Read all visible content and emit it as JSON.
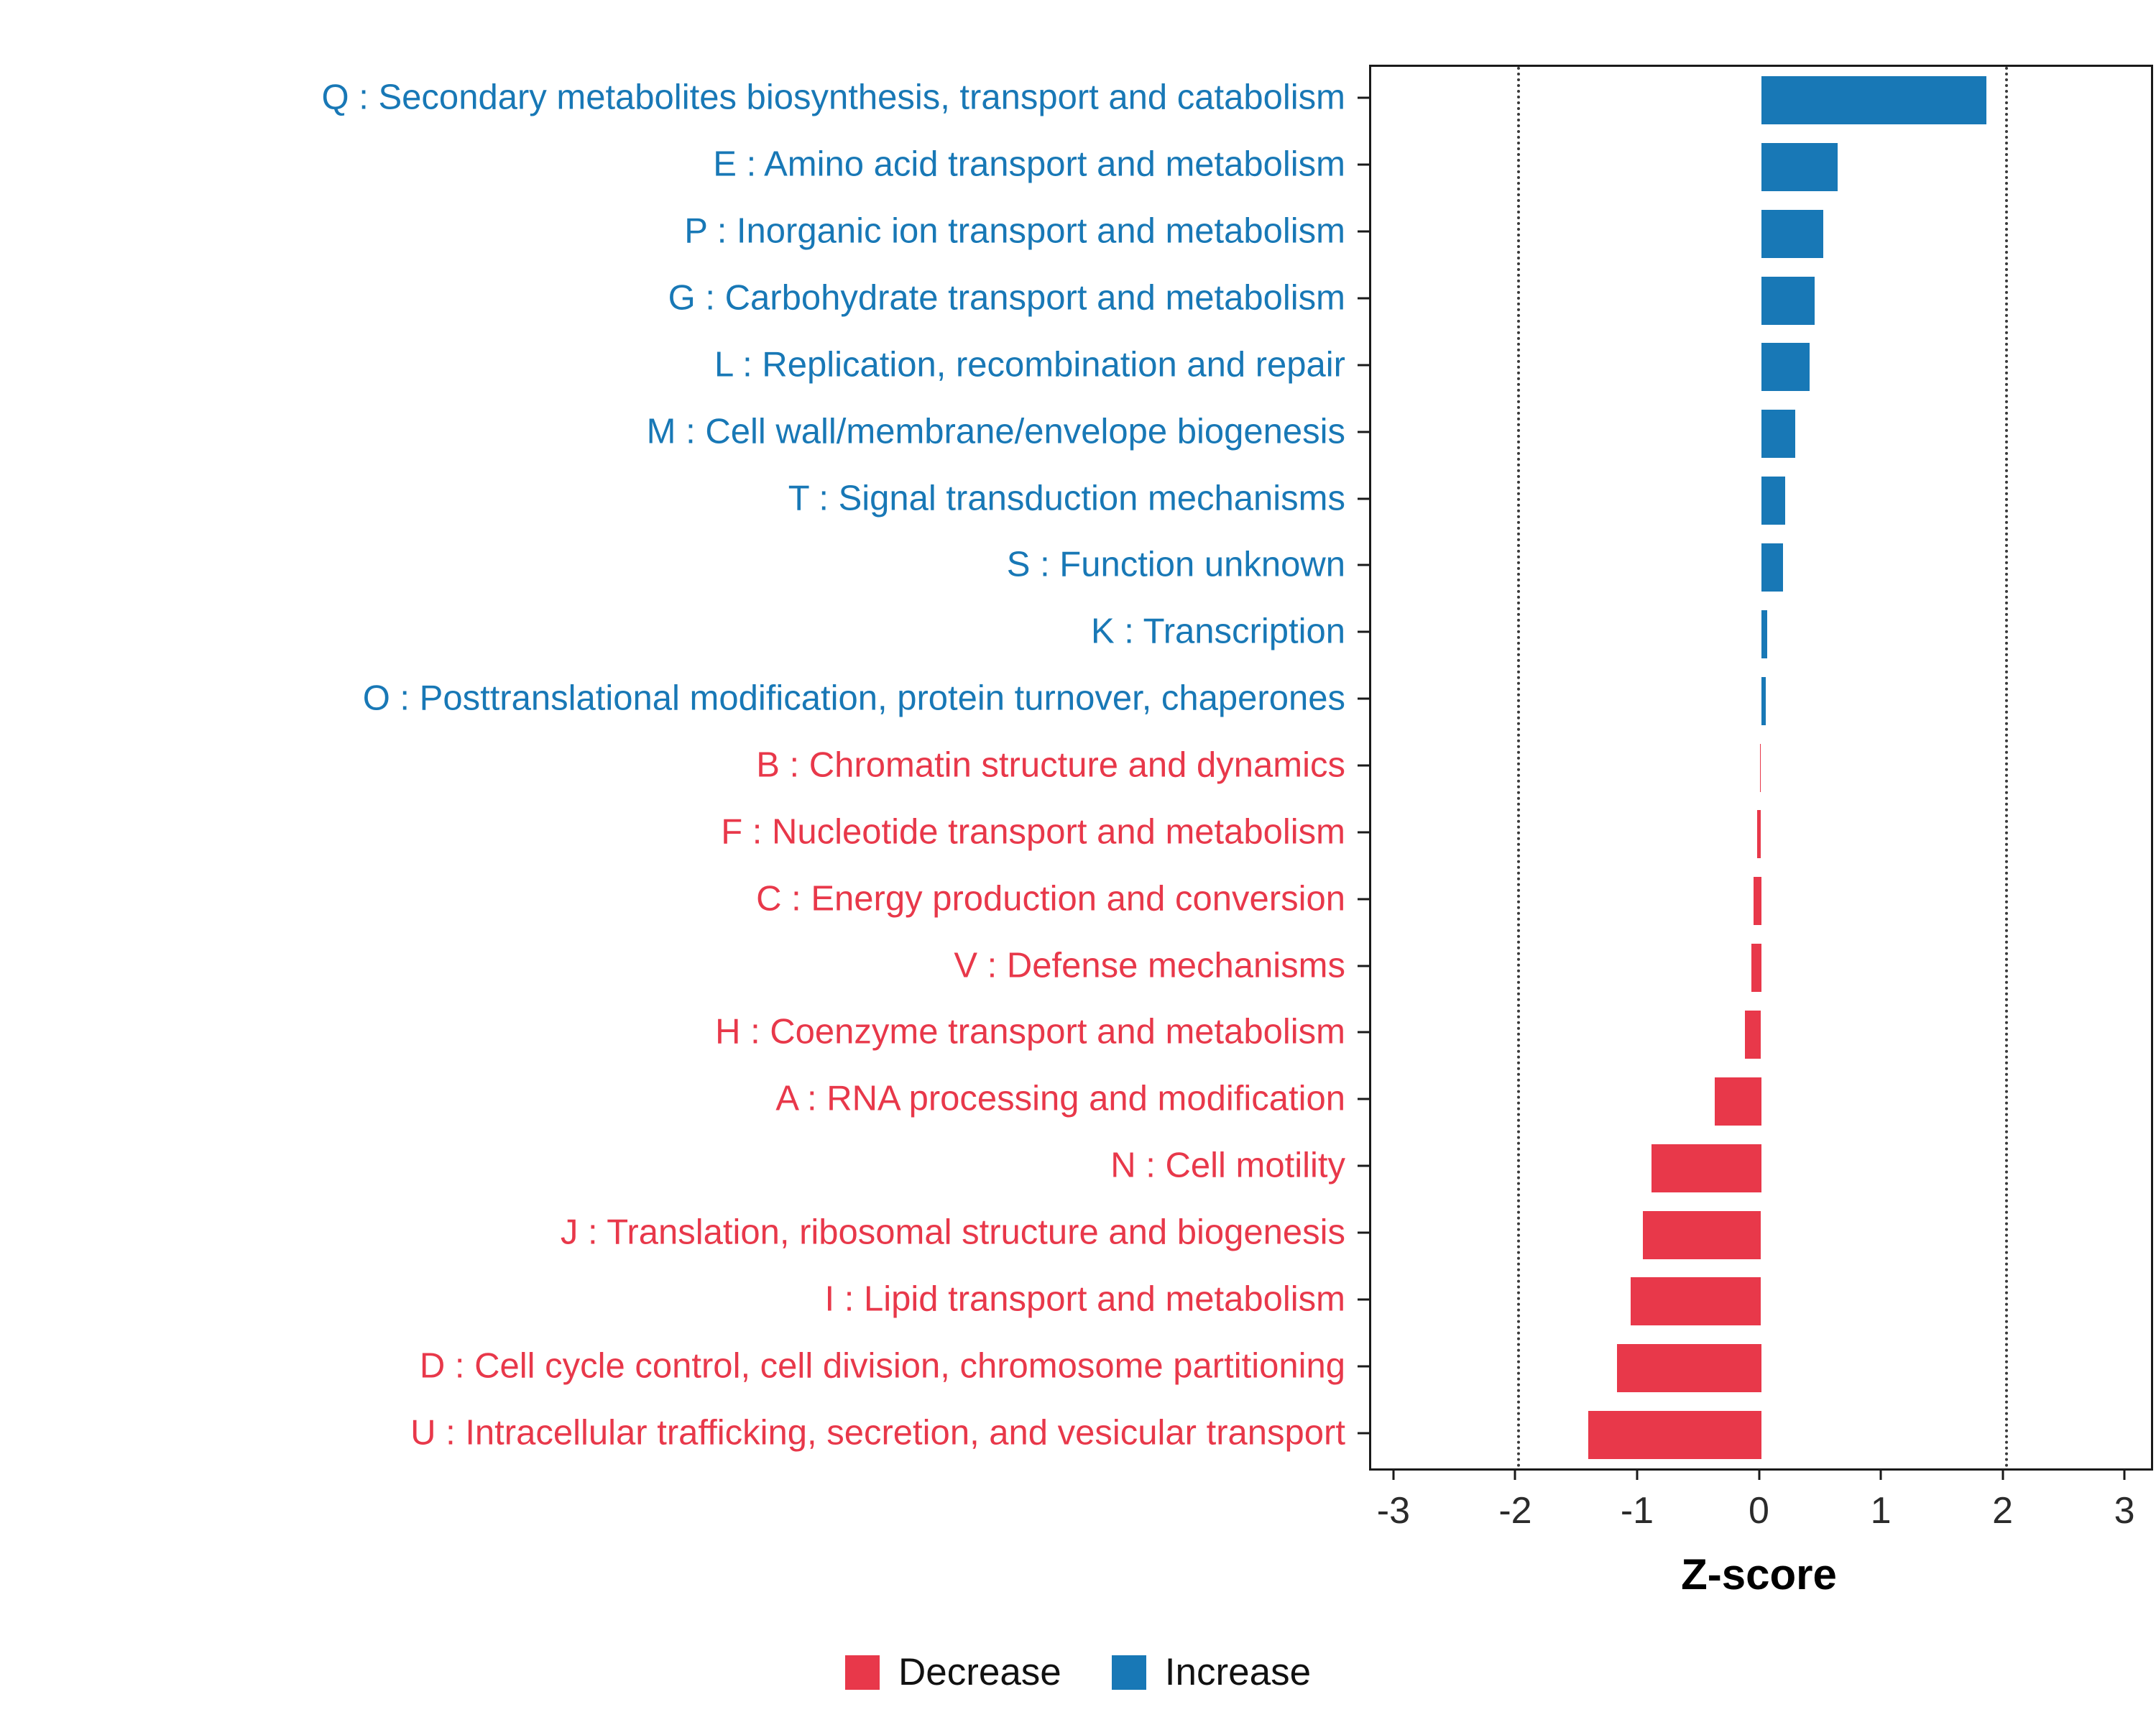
{
  "chart_data": {
    "type": "bar",
    "orientation": "horizontal",
    "title": "",
    "xlabel": "Z-score",
    "xlim": [
      -3.2,
      3.2
    ],
    "x_ticks": [
      -3,
      -2,
      -1,
      0,
      1,
      2,
      3
    ],
    "reference_lines": [
      -2,
      2
    ],
    "grid": "dotted-reference-lines-only",
    "legend_position": "bottom",
    "colors": {
      "increase": "#1878B6",
      "decrease": "#E8384A",
      "axis": "#1a1a1a",
      "background": "#ffffff"
    },
    "legend": [
      {
        "label": "Decrease",
        "key": "decrease"
      },
      {
        "label": "Increase",
        "key": "increase"
      }
    ],
    "series": [
      {
        "category": "Q : Secondary metabolites biosynthesis, transport and catabolism",
        "value": 1.85,
        "group": "increase"
      },
      {
        "category": "E : Amino acid transport and metabolism",
        "value": 0.63,
        "group": "increase"
      },
      {
        "category": "P : Inorganic ion transport and metabolism",
        "value": 0.51,
        "group": "increase"
      },
      {
        "category": "G : Carbohydrate transport and metabolism",
        "value": 0.44,
        "group": "increase"
      },
      {
        "category": "L : Replication, recombination and repair",
        "value": 0.4,
        "group": "increase"
      },
      {
        "category": "M : Cell wall/membrane/envelope biogenesis",
        "value": 0.28,
        "group": "increase"
      },
      {
        "category": "T : Signal transduction mechanisms",
        "value": 0.2,
        "group": "increase"
      },
      {
        "category": "S : Function unknown",
        "value": 0.18,
        "group": "increase"
      },
      {
        "category": "K : Transcription",
        "value": 0.05,
        "group": "increase"
      },
      {
        "category": "O : Posttranslational modification, protein turnover, chaperones",
        "value": 0.04,
        "group": "increase"
      },
      {
        "category": "B : Chromatin structure and dynamics",
        "value": -0.01,
        "group": "decrease"
      },
      {
        "category": "F : Nucleotide transport and metabolism",
        "value": -0.03,
        "group": "decrease"
      },
      {
        "category": "C : Energy production and conversion",
        "value": -0.06,
        "group": "decrease"
      },
      {
        "category": "V : Defense mechanisms",
        "value": -0.08,
        "group": "decrease"
      },
      {
        "category": "H : Coenzyme transport and metabolism",
        "value": -0.13,
        "group": "decrease"
      },
      {
        "category": "A : RNA processing and modification",
        "value": -0.38,
        "group": "decrease"
      },
      {
        "category": "N : Cell motility",
        "value": -0.9,
        "group": "decrease"
      },
      {
        "category": "J : Translation, ribosomal structure and biogenesis",
        "value": -0.97,
        "group": "decrease"
      },
      {
        "category": "I : Lipid transport and metabolism",
        "value": -1.07,
        "group": "decrease"
      },
      {
        "category": "D : Cell cycle control, cell division, chromosome partitioning",
        "value": -1.18,
        "group": "decrease"
      },
      {
        "category": "U : Intracellular trafficking, secretion, and vesicular transport",
        "value": -1.42,
        "group": "decrease"
      }
    ]
  }
}
